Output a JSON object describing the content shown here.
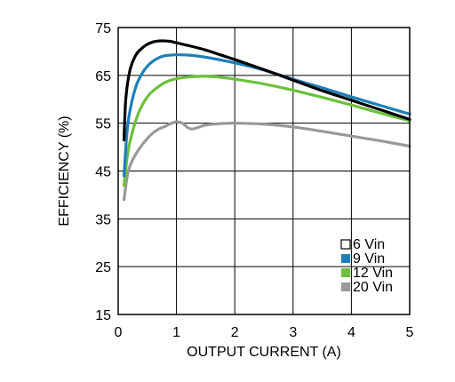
{
  "chart_data": {
    "type": "line",
    "title": "",
    "xlabel": "OUTPUT CURRENT (A)",
    "ylabel": "EFFICIENCY (%)",
    "xlim": [
      0,
      5
    ],
    "ylim": [
      15,
      75
    ],
    "xticks": [
      0,
      1,
      2,
      3,
      4,
      5
    ],
    "yticks": [
      15,
      25,
      35,
      45,
      55,
      65,
      75
    ],
    "grid": true,
    "legend_position": "bottom-right",
    "series": [
      {
        "name": "6 Vin",
        "color": "#000000",
        "legend_swatch": "hollow",
        "x": [
          0.1,
          0.13,
          0.2,
          0.3,
          0.4,
          0.5,
          0.6,
          0.7,
          0.8,
          0.9,
          1.0,
          1.25,
          1.5,
          1.75,
          2.0,
          2.5,
          3.0,
          3.5,
          4.0,
          4.5,
          5.0
        ],
        "y": [
          51.5,
          60,
          66,
          69.2,
          70.6,
          71.5,
          72.0,
          72.2,
          72.2,
          72.1,
          71.8,
          71.1,
          70.3,
          69.3,
          68.3,
          66.2,
          64.0,
          61.8,
          59.8,
          57.8,
          55.8
        ]
      },
      {
        "name": "9 Vin",
        "color": "#1e7fb8",
        "legend_swatch": "filled",
        "x": [
          0.1,
          0.15,
          0.2,
          0.3,
          0.4,
          0.5,
          0.6,
          0.7,
          0.8,
          1.0,
          1.25,
          1.5,
          2.0,
          2.5,
          3.0,
          3.5,
          4.0,
          4.5,
          5.0
        ],
        "y": [
          44,
          53,
          57.5,
          62.5,
          65.2,
          66.9,
          68.0,
          68.7,
          69.1,
          69.3,
          69.2,
          68.8,
          67.6,
          66.1,
          64.2,
          62.4,
          60.5,
          58.7,
          56.9
        ]
      },
      {
        "name": "12 Vin",
        "color": "#6cc03c",
        "legend_swatch": "filled",
        "x": [
          0.1,
          0.15,
          0.2,
          0.3,
          0.4,
          0.5,
          0.6,
          0.8,
          1.0,
          1.25,
          1.5,
          1.75,
          2.0,
          2.5,
          3.0,
          3.5,
          4.0,
          4.5,
          5.0
        ],
        "y": [
          42,
          47.5,
          51,
          55.5,
          58.5,
          60.5,
          61.8,
          63.5,
          64.3,
          64.7,
          64.8,
          64.6,
          64.2,
          63.2,
          61.9,
          60.4,
          58.8,
          57.1,
          55.5
        ]
      },
      {
        "name": "20 Vin",
        "color": "#999999",
        "legend_swatch": "filled",
        "x": [
          0.1,
          0.15,
          0.2,
          0.3,
          0.4,
          0.5,
          0.6,
          0.7,
          0.8,
          0.9,
          1.0,
          1.1,
          1.25,
          1.5,
          1.75,
          2.0,
          2.5,
          3.0,
          3.5,
          4.0,
          4.5,
          5.0
        ],
        "y": [
          39,
          43.5,
          46,
          48.5,
          50.3,
          51.8,
          53,
          53.8,
          54.3,
          54.9,
          55.3,
          55.0,
          53.8,
          54.6,
          54.9,
          55.0,
          54.8,
          54.2,
          53.3,
          52.3,
          51.3,
          50.2
        ]
      }
    ]
  }
}
